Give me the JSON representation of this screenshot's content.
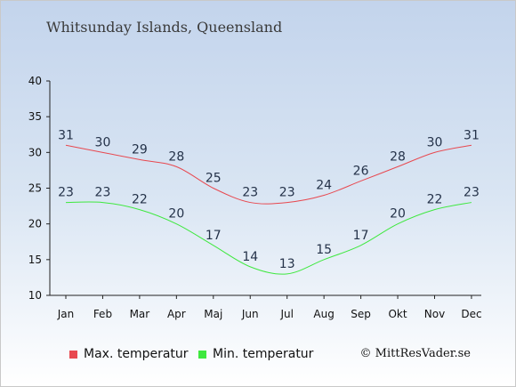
{
  "title": "Whitsunday Islands, Queensland",
  "credit": "© MittResVader.se",
  "colors": {
    "max": "#e8484f",
    "min": "#3ee83e",
    "axis": "#222222"
  },
  "legend": {
    "max_label": "Max. temperatur",
    "min_label": "Min. temperatur"
  },
  "chart_data": {
    "type": "line",
    "title": "Whitsunday Islands, Queensland",
    "categories": [
      "Jan",
      "Feb",
      "Mar",
      "Apr",
      "Maj",
      "Jun",
      "Jul",
      "Aug",
      "Sep",
      "Okt",
      "Nov",
      "Dec"
    ],
    "series": [
      {
        "name": "Max. temperatur",
        "values": [
          31,
          30,
          29,
          28,
          25,
          23,
          23,
          24,
          26,
          28,
          30,
          31
        ]
      },
      {
        "name": "Min. temperatur",
        "values": [
          23,
          23,
          22,
          20,
          17,
          14,
          13,
          15,
          17,
          20,
          22,
          23
        ]
      }
    ],
    "ylim": [
      10,
      40
    ],
    "yticks": [
      10,
      15,
      20,
      25,
      30,
      35,
      40
    ],
    "grid": false,
    "legend_position": "bottom-left"
  }
}
